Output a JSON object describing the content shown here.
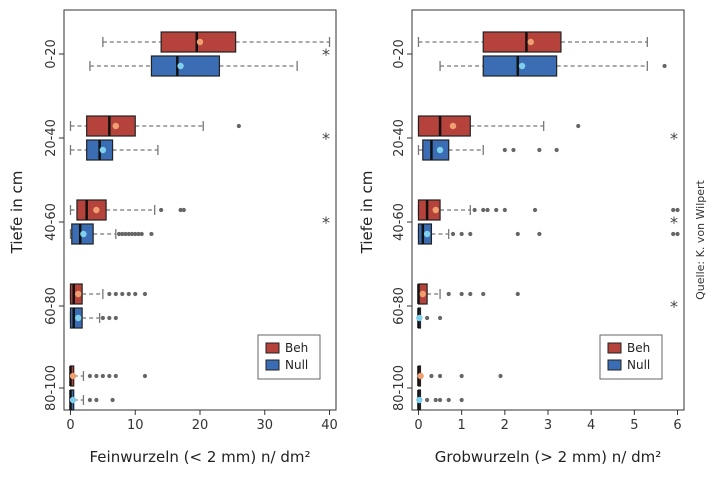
{
  "credit": "Quelle: K. von Wilpert",
  "colors": {
    "beh": "#b5423b",
    "null": "#3a6db3",
    "median": "#111111",
    "whisker": "#777777",
    "sig": "#444444"
  },
  "chart_data": [
    {
      "type": "boxplot",
      "orientation": "horizontal",
      "xlabel": "Feinwurzeln (< 2 mm) n/ dm²",
      "ylabel": "Tiefe in cm",
      "xlim": [
        -1,
        41
      ],
      "xticks": [
        "0",
        "10",
        "20",
        "30",
        "40"
      ],
      "grid": false,
      "legend": {
        "position": "bottom-right",
        "entries": [
          "Beh",
          "Null"
        ]
      },
      "categories": [
        "0-20",
        "20-40",
        "40-60",
        "60-80",
        "80-100"
      ],
      "series": [
        {
          "name": "Beh",
          "boxes": [
            {
              "min": 5,
              "q1": 14,
              "median": 19.5,
              "q3": 25.5,
              "max": 40,
              "mean": 20,
              "outliers": []
            },
            {
              "min": 0,
              "q1": 2.5,
              "median": 6,
              "q3": 10,
              "max": 20.5,
              "mean": 7,
              "outliers": [
                26
              ]
            },
            {
              "min": 0,
              "q1": 1,
              "median": 2.5,
              "q3": 5.5,
              "max": 13,
              "mean": 4,
              "outliers": [
                14,
                17,
                17.5
              ]
            },
            {
              "min": 0,
              "q1": 0,
              "median": 0.5,
              "q3": 1.8,
              "max": 5,
              "mean": 1.2,
              "outliers": [
                6,
                7,
                8,
                9,
                10,
                11.5
              ]
            },
            {
              "min": 0,
              "q1": 0,
              "median": 0,
              "q3": 0.5,
              "max": 2,
              "mean": 0.4,
              "outliers": [
                3,
                4,
                5,
                6,
                7,
                11.5
              ]
            }
          ]
        },
        {
          "name": "Null",
          "boxes": [
            {
              "min": 3,
              "q1": 12.5,
              "median": 16.5,
              "q3": 23,
              "max": 35,
              "mean": 17,
              "outliers": []
            },
            {
              "min": 0,
              "q1": 2.5,
              "median": 4.5,
              "q3": 6.5,
              "max": 13.5,
              "mean": 5,
              "outliers": []
            },
            {
              "min": 0,
              "q1": 0.2,
              "median": 1.5,
              "q3": 3.5,
              "max": 7,
              "mean": 2,
              "outliers": [
                7.5,
                8,
                8.5,
                9,
                9.5,
                10,
                10.5,
                11,
                12.5
              ]
            },
            {
              "min": 0,
              "q1": 0,
              "median": 0.5,
              "q3": 1.8,
              "max": 4.5,
              "mean": 1.2,
              "outliers": [
                5,
                6,
                7
              ]
            },
            {
              "min": 0,
              "q1": 0,
              "median": 0,
              "q3": 0.5,
              "max": 2,
              "mean": 0.4,
              "outliers": [
                3,
                4,
                6.5
              ]
            }
          ]
        }
      ],
      "significance": [
        {
          "depth": "0-20",
          "symbol": "*"
        },
        {
          "depth": "20-40",
          "symbol": "*"
        },
        {
          "depth": "40-60",
          "symbol": "*"
        }
      ]
    },
    {
      "type": "boxplot",
      "orientation": "horizontal",
      "xlabel": "Grobwurzeln (> 2 mm) n/ dm²",
      "ylabel": "Tiefe in cm",
      "xlim": [
        -0.15,
        6.15
      ],
      "xticks": [
        "0",
        "1",
        "2",
        "3",
        "4",
        "5",
        "6"
      ],
      "grid": false,
      "legend": {
        "position": "bottom-right",
        "entries": [
          "Beh",
          "Null"
        ]
      },
      "categories": [
        "0-20",
        "20-40",
        "40-60",
        "60-80",
        "80-100"
      ],
      "series": [
        {
          "name": "Beh",
          "boxes": [
            {
              "min": 0,
              "q1": 1.5,
              "median": 2.5,
              "q3": 3.3,
              "max": 5.3,
              "mean": 2.6,
              "outliers": []
            },
            {
              "min": 0,
              "q1": 0,
              "median": 0.5,
              "q3": 1.2,
              "max": 2.9,
              "mean": 0.8,
              "outliers": [
                3.7
              ]
            },
            {
              "min": 0,
              "q1": 0,
              "median": 0.2,
              "q3": 0.5,
              "max": 1.2,
              "mean": 0.4,
              "outliers": [
                1.3,
                1.5,
                1.6,
                1.8,
                2,
                2.7,
                5.9,
                6
              ]
            },
            {
              "min": 0,
              "q1": 0,
              "median": 0,
              "q3": 0.2,
              "max": 0.5,
              "mean": 0.1,
              "outliers": [
                0.7,
                1,
                1.2,
                1.5,
                2.3
              ]
            },
            {
              "min": 0,
              "q1": 0,
              "median": 0,
              "q3": 0,
              "max": 0,
              "mean": 0.05,
              "outliers": [
                0.3,
                0.5,
                1,
                1.9
              ]
            }
          ]
        },
        {
          "name": "Null",
          "boxes": [
            {
              "min": 0.5,
              "q1": 1.5,
              "median": 2.3,
              "q3": 3.2,
              "max": 5.3,
              "mean": 2.4,
              "outliers": [
                5.7
              ]
            },
            {
              "min": 0,
              "q1": 0.1,
              "median": 0.3,
              "q3": 0.7,
              "max": 1.5,
              "mean": 0.5,
              "outliers": [
                2,
                2.2,
                2.8,
                3.2
              ]
            },
            {
              "min": 0,
              "q1": 0,
              "median": 0.1,
              "q3": 0.3,
              "max": 0.7,
              "mean": 0.2,
              "outliers": [
                0.8,
                1,
                1.2,
                2.3,
                2.8,
                5.9,
                6
              ]
            },
            {
              "min": 0,
              "q1": 0,
              "median": 0,
              "q3": 0,
              "max": 0,
              "mean": 0.02,
              "outliers": [
                0.2,
                0.5
              ]
            },
            {
              "min": 0,
              "q1": 0,
              "median": 0,
              "q3": 0,
              "max": 0,
              "mean": 0.02,
              "outliers": [
                0.2,
                0.4,
                0.5,
                0.7,
                1
              ]
            }
          ]
        }
      ],
      "significance": [
        {
          "depth": "20-40",
          "symbol": "*"
        },
        {
          "depth": "40-60",
          "symbol": "*"
        },
        {
          "depth": "60-80",
          "symbol": "*"
        }
      ]
    }
  ]
}
